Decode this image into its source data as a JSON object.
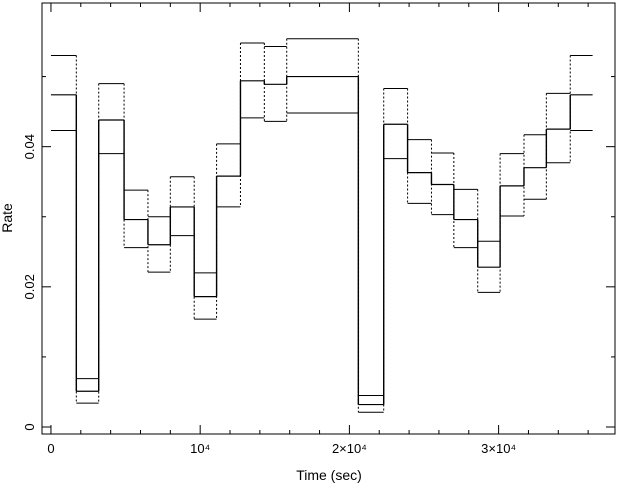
{
  "chart_data": {
    "type": "line",
    "subtype": "step light curve with error envelope",
    "xlabel": "Time (sec)",
    "ylabel": "Rate",
    "xlim": [
      -600,
      37800
    ],
    "ylim": [
      -0.001,
      0.0605
    ],
    "x_ticks": [
      {
        "value": 0,
        "label": "0"
      },
      {
        "value": 10000,
        "label": "10⁴"
      },
      {
        "value": 20000,
        "label": "2×10⁴"
      },
      {
        "value": 30000,
        "label": "3×10⁴"
      }
    ],
    "y_ticks": [
      {
        "value": 0,
        "label": "0"
      },
      {
        "value": 0.02,
        "label": "0.02"
      },
      {
        "value": 0.04,
        "label": "0.04"
      }
    ],
    "grid": false,
    "bins": [
      {
        "x0": 0,
        "x1": 1700,
        "rate": 0.0474,
        "lo": 0.0423,
        "hi": 0.053
      },
      {
        "x0": 1700,
        "x1": 3200,
        "rate": 0.0051,
        "lo": 0.0034,
        "hi": 0.0069
      },
      {
        "x0": 3200,
        "x1": 4900,
        "rate": 0.0438,
        "lo": 0.039,
        "hi": 0.049
      },
      {
        "x0": 4900,
        "x1": 6500,
        "rate": 0.0296,
        "lo": 0.0256,
        "hi": 0.0338
      },
      {
        "x0": 6500,
        "x1": 8000,
        "rate": 0.026,
        "lo": 0.0221,
        "hi": 0.03
      },
      {
        "x0": 8000,
        "x1": 9600,
        "rate": 0.0314,
        "lo": 0.0273,
        "hi": 0.0357
      },
      {
        "x0": 9600,
        "x1": 11100,
        "rate": 0.0186,
        "lo": 0.0154,
        "hi": 0.022
      },
      {
        "x0": 11100,
        "x1": 12700,
        "rate": 0.0358,
        "lo": 0.0314,
        "hi": 0.0404
      },
      {
        "x0": 12700,
        "x1": 14300,
        "rate": 0.0494,
        "lo": 0.0441,
        "hi": 0.0548
      },
      {
        "x0": 14300,
        "x1": 15800,
        "rate": 0.0489,
        "lo": 0.0436,
        "hi": 0.0543
      },
      {
        "x0": 15800,
        "x1": 20600,
        "rate": 0.05,
        "lo": 0.0448,
        "hi": 0.0554
      },
      {
        "x0": 20600,
        "x1": 22300,
        "rate": 0.0032,
        "lo": 0.0021,
        "hi": 0.0045
      },
      {
        "x0": 22300,
        "x1": 23900,
        "rate": 0.0432,
        "lo": 0.0383,
        "hi": 0.0483
      },
      {
        "x0": 23900,
        "x1": 25500,
        "rate": 0.0363,
        "lo": 0.0319,
        "hi": 0.041
      },
      {
        "x0": 25500,
        "x1": 27000,
        "rate": 0.0346,
        "lo": 0.0303,
        "hi": 0.0391
      },
      {
        "x0": 27000,
        "x1": 28600,
        "rate": 0.0296,
        "lo": 0.0256,
        "hi": 0.0339
      },
      {
        "x0": 28600,
        "x1": 30100,
        "rate": 0.0228,
        "lo": 0.0192,
        "hi": 0.0265
      },
      {
        "x0": 30100,
        "x1": 31700,
        "rate": 0.0344,
        "lo": 0.0301,
        "hi": 0.039
      },
      {
        "x0": 31700,
        "x1": 33200,
        "rate": 0.037,
        "lo": 0.0325,
        "hi": 0.0417
      },
      {
        "x0": 33200,
        "x1": 34800,
        "rate": 0.0425,
        "lo": 0.0377,
        "hi": 0.0476
      },
      {
        "x0": 34800,
        "x1": 36300,
        "rate": 0.0474,
        "lo": 0.0423,
        "hi": 0.053
      }
    ]
  }
}
